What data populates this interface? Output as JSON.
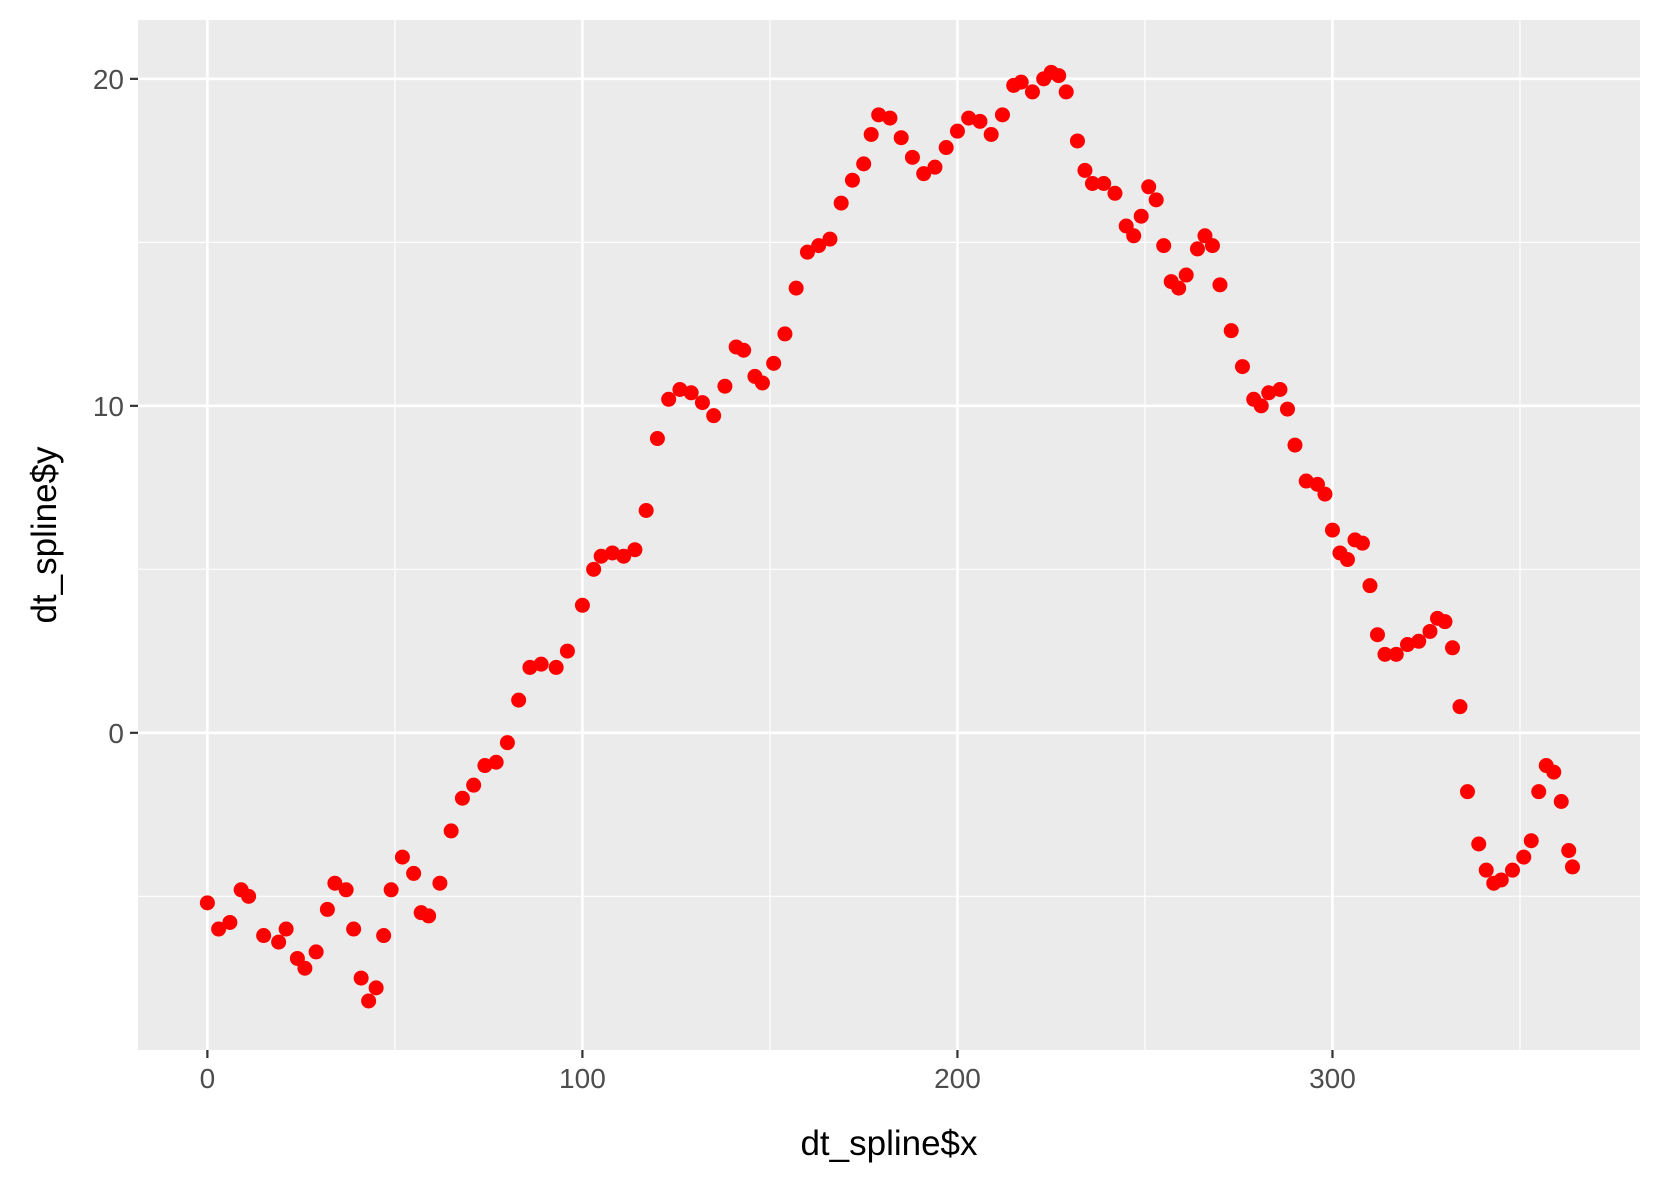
{
  "chart_data": {
    "type": "scatter",
    "title": "",
    "xlabel": "dt_spline$x",
    "ylabel": "dt_spline$y",
    "xlim": [
      -18.5,
      382
    ],
    "ylim": [
      -9.7,
      21.8
    ],
    "x_ticks": [
      0,
      100,
      200,
      300
    ],
    "x_tick_labels": [
      "0",
      "100",
      "200",
      "300"
    ],
    "x_minor_ticks": [
      50,
      150,
      250,
      350
    ],
    "y_ticks": [
      0,
      10,
      20
    ],
    "y_tick_labels": [
      "0",
      "10",
      "20"
    ],
    "y_minor_ticks": [
      -5,
      5,
      15
    ],
    "grid": true,
    "legend": "none",
    "colors": {
      "point": "#ff0000",
      "panel": "#ebebeb",
      "grid": "#ffffff"
    },
    "key_points": [
      [
        0,
        -5.2
      ],
      [
        3,
        -6.0
      ],
      [
        6,
        -5.8
      ],
      [
        9,
        -4.8
      ],
      [
        11,
        -5.0
      ],
      [
        15,
        -6.2
      ],
      [
        19,
        -6.4
      ],
      [
        21,
        -6.0
      ],
      [
        24,
        -6.9
      ],
      [
        26,
        -7.2
      ],
      [
        29,
        -6.7
      ],
      [
        32,
        -5.4
      ],
      [
        34,
        -4.6
      ],
      [
        37,
        -4.8
      ],
      [
        39,
        -6.0
      ],
      [
        41,
        -7.5
      ],
      [
        43,
        -8.2
      ],
      [
        45,
        -7.8
      ],
      [
        47,
        -6.2
      ],
      [
        49,
        -4.8
      ],
      [
        52,
        -3.8
      ],
      [
        55,
        -4.3
      ],
      [
        57,
        -5.5
      ],
      [
        59,
        -5.6
      ],
      [
        62,
        -4.6
      ],
      [
        65,
        -3.0
      ],
      [
        68,
        -2.0
      ],
      [
        71,
        -1.6
      ],
      [
        74,
        -1.0
      ],
      [
        77,
        -0.9
      ],
      [
        80,
        -0.3
      ],
      [
        83,
        1.0
      ],
      [
        86,
        2.0
      ],
      [
        89,
        2.1
      ],
      [
        93,
        2.0
      ],
      [
        96,
        2.5
      ],
      [
        100,
        3.9
      ],
      [
        103,
        5.0
      ],
      [
        105,
        5.4
      ],
      [
        108,
        5.5
      ],
      [
        111,
        5.4
      ],
      [
        114,
        5.6
      ],
      [
        117,
        6.8
      ],
      [
        120,
        9.0
      ],
      [
        123,
        10.2
      ],
      [
        126,
        10.5
      ],
      [
        129,
        10.4
      ],
      [
        132,
        10.1
      ],
      [
        135,
        9.7
      ],
      [
        138,
        10.6
      ],
      [
        141,
        11.8
      ],
      [
        143,
        11.7
      ],
      [
        146,
        10.9
      ],
      [
        148,
        10.7
      ],
      [
        151,
        11.3
      ],
      [
        154,
        12.2
      ],
      [
        157,
        13.6
      ],
      [
        160,
        14.7
      ],
      [
        163,
        14.9
      ],
      [
        166,
        15.1
      ],
      [
        169,
        16.2
      ],
      [
        172,
        16.9
      ],
      [
        175,
        17.4
      ],
      [
        177,
        18.3
      ],
      [
        179,
        18.9
      ],
      [
        182,
        18.8
      ],
      [
        185,
        18.2
      ],
      [
        188,
        17.6
      ],
      [
        191,
        17.1
      ],
      [
        194,
        17.3
      ],
      [
        197,
        17.9
      ],
      [
        200,
        18.4
      ],
      [
        203,
        18.8
      ],
      [
        206,
        18.7
      ],
      [
        209,
        18.3
      ],
      [
        212,
        18.9
      ],
      [
        215,
        19.8
      ],
      [
        217,
        19.9
      ],
      [
        220,
        19.6
      ],
      [
        223,
        20.0
      ],
      [
        225,
        20.2
      ],
      [
        227,
        20.1
      ],
      [
        229,
        19.6
      ],
      [
        232,
        18.1
      ],
      [
        234,
        17.2
      ],
      [
        236,
        16.8
      ],
      [
        239,
        16.8
      ],
      [
        242,
        16.5
      ],
      [
        245,
        15.5
      ],
      [
        247,
        15.2
      ],
      [
        249,
        15.8
      ],
      [
        251,
        16.7
      ],
      [
        253,
        16.3
      ],
      [
        255,
        14.9
      ],
      [
        257,
        13.8
      ],
      [
        259,
        13.6
      ],
      [
        261,
        14.0
      ],
      [
        264,
        14.8
      ],
      [
        266,
        15.2
      ],
      [
        268,
        14.9
      ],
      [
        270,
        13.7
      ],
      [
        273,
        12.3
      ],
      [
        276,
        11.2
      ],
      [
        279,
        10.2
      ],
      [
        281,
        10.0
      ],
      [
        283,
        10.4
      ],
      [
        286,
        10.5
      ],
      [
        288,
        9.9
      ],
      [
        290,
        8.8
      ],
      [
        293,
        7.7
      ],
      [
        296,
        7.6
      ],
      [
        298,
        7.3
      ],
      [
        300,
        6.2
      ],
      [
        302,
        5.5
      ],
      [
        304,
        5.3
      ],
      [
        306,
        5.9
      ],
      [
        308,
        5.8
      ],
      [
        310,
        4.5
      ],
      [
        312,
        3.0
      ],
      [
        314,
        2.4
      ],
      [
        317,
        2.4
      ],
      [
        320,
        2.7
      ],
      [
        323,
        2.8
      ],
      [
        326,
        3.1
      ],
      [
        328,
        3.5
      ],
      [
        330,
        3.4
      ],
      [
        332,
        2.6
      ],
      [
        334,
        0.8
      ],
      [
        336,
        -1.8
      ],
      [
        339,
        -3.4
      ],
      [
        341,
        -4.2
      ],
      [
        343,
        -4.6
      ],
      [
        345,
        -4.5
      ],
      [
        348,
        -4.2
      ],
      [
        351,
        -3.8
      ],
      [
        353,
        -3.3
      ],
      [
        355,
        -1.8
      ],
      [
        357,
        -1.0
      ],
      [
        359,
        -1.2
      ],
      [
        361,
        -2.1
      ],
      [
        363,
        -3.6
      ],
      [
        364,
        -4.1
      ]
    ]
  }
}
